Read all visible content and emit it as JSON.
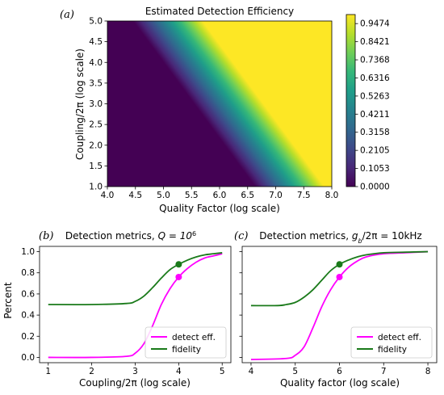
{
  "panels": {
    "a": "(a)",
    "b": "(b)",
    "c": "(c)"
  },
  "chart_data": [
    {
      "id": "a",
      "type": "heatmap",
      "title": "Estimated Detection Efficiency",
      "xlabel": "Quality Factor (log scale)",
      "ylabel": "Coupling/2π (log scale)",
      "xlim": [
        4.0,
        8.0
      ],
      "ylim": [
        1.0,
        5.0
      ],
      "xticks": [
        "4.0",
        "4.5",
        "5.0",
        "5.5",
        "6.0",
        "6.5",
        "7.0",
        "7.5",
        "8.0"
      ],
      "yticks": [
        "1.0",
        "1.5",
        "2.0",
        "2.5",
        "3.0",
        "3.5",
        "4.0",
        "4.5",
        "5.0"
      ],
      "colorbar": {
        "ticks": [
          "0.0000",
          "0.1053",
          "0.2105",
          "0.3158",
          "0.4211",
          "0.5263",
          "0.6316",
          "0.7368",
          "0.8421",
          "0.9474"
        ],
        "min": 0.0,
        "max": 1.0,
        "colormap": [
          "#440154",
          "#482878",
          "#3e4989",
          "#31688e",
          "#26828e",
          "#1f9e89",
          "#35b779",
          "#6ece58",
          "#b5de2b",
          "#fde725"
        ]
      },
      "transition": {
        "start_sum": 9.3,
        "end_sum": 10.9
      }
    },
    {
      "id": "b",
      "type": "line",
      "title": "Detection metrics, ",
      "title_math": "Q = 10",
      "title_sup": "6",
      "xlabel": "Coupling/2π (log scale)",
      "ylabel": "Percent",
      "xlim": [
        0.8,
        5.2
      ],
      "ylim": [
        -0.05,
        1.05
      ],
      "xticks": [
        1,
        2,
        3,
        4,
        5
      ],
      "yticks": [
        "0.0",
        "0.2",
        "0.4",
        "0.6",
        "0.8",
        "1.0"
      ],
      "legend_position": "lower-right",
      "series": [
        {
          "name": "detect eff.",
          "color": "#ff00ff",
          "x": [
            1.0,
            2.0,
            2.8,
            3.0,
            3.2,
            3.4,
            3.6,
            3.8,
            4.0,
            4.2,
            4.4,
            4.6,
            4.8,
            5.0
          ],
          "y": [
            0.0,
            0.0,
            0.01,
            0.04,
            0.13,
            0.3,
            0.5,
            0.65,
            0.76,
            0.84,
            0.9,
            0.94,
            0.96,
            0.98
          ]
        },
        {
          "name": "fidelity",
          "color": "#1a7a1a",
          "x": [
            1.0,
            2.0,
            2.8,
            3.0,
            3.2,
            3.4,
            3.6,
            3.8,
            4.0,
            4.2,
            4.4,
            4.6,
            4.8,
            5.0
          ],
          "y": [
            0.5,
            0.5,
            0.51,
            0.53,
            0.58,
            0.66,
            0.75,
            0.83,
            0.88,
            0.92,
            0.95,
            0.97,
            0.98,
            0.99
          ]
        }
      ],
      "markers": [
        {
          "x": 4.0,
          "y": 0.76,
          "color": "#ff00ff"
        },
        {
          "x": 4.0,
          "y": 0.88,
          "color": "#1a7a1a"
        }
      ]
    },
    {
      "id": "c",
      "type": "line",
      "title": "Detection metrics, ",
      "title_math": "g",
      "title_sub": "b",
      "title_rest": "/2π = 10kHz",
      "xlabel": "Quality factor (log scale)",
      "ylabel": "",
      "xlim": [
        3.8,
        8.2
      ],
      "ylim": [
        -0.05,
        1.05
      ],
      "xticks": [
        4,
        5,
        6,
        7,
        8
      ],
      "legend_position": "lower-right",
      "series": [
        {
          "name": "detect eff.",
          "color": "#ff00ff",
          "x": [
            4.0,
            4.8,
            5.0,
            5.2,
            5.4,
            5.6,
            5.8,
            6.0,
            6.2,
            6.4,
            6.6,
            7.0,
            7.5,
            8.0
          ],
          "y": [
            -0.02,
            -0.01,
            0.02,
            0.1,
            0.28,
            0.48,
            0.64,
            0.76,
            0.85,
            0.91,
            0.95,
            0.98,
            0.99,
            1.0
          ]
        },
        {
          "name": "fidelity",
          "color": "#1a7a1a",
          "x": [
            4.0,
            4.6,
            4.8,
            5.0,
            5.2,
            5.4,
            5.6,
            5.8,
            6.0,
            6.2,
            6.4,
            6.6,
            7.0,
            7.5,
            8.0
          ],
          "y": [
            0.49,
            0.49,
            0.5,
            0.52,
            0.57,
            0.64,
            0.73,
            0.82,
            0.88,
            0.92,
            0.95,
            0.97,
            0.99,
            0.995,
            1.0
          ]
        }
      ],
      "markers": [
        {
          "x": 6.0,
          "y": 0.76,
          "color": "#ff00ff"
        },
        {
          "x": 6.0,
          "y": 0.88,
          "color": "#1a7a1a"
        }
      ]
    }
  ]
}
